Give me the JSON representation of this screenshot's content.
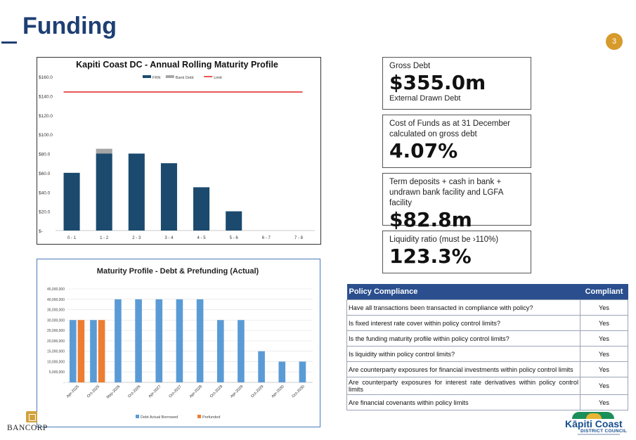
{
  "page": {
    "title": "Funding",
    "number": "3"
  },
  "chart_data": [
    {
      "type": "bar",
      "title": "Kapiti Coast DC - Annual Rolling Maturity Profile",
      "categories": [
        "0 - 1",
        "1 - 2",
        "2 - 3",
        "3 - 4",
        "4 - 5",
        "5 - 6",
        "6 - 7",
        "7 - 8"
      ],
      "series": [
        {
          "name": "FRN",
          "values": [
            60,
            80,
            80,
            70,
            45,
            20,
            0,
            0
          ],
          "color": "#1b4a6e"
        },
        {
          "name": "Bank Debt",
          "values": [
            0,
            5,
            0,
            0,
            0,
            0,
            0,
            0
          ],
          "color": "#a6a6a6"
        }
      ],
      "limit": {
        "name": "Limit",
        "value": 144,
        "color": "#e02020"
      },
      "yticks": [
        "$-",
        "$20.0",
        "$40.0",
        "$60.0",
        "$80.0",
        "$100.0",
        "$120.0",
        "$140.0",
        "$160.0"
      ],
      "ylim": [
        0,
        160
      ],
      "legend": "top"
    },
    {
      "type": "bar",
      "title": "Maturity Profile - Debt & Prefunding (Actual)",
      "categories": [
        "Apr-2025",
        "Oct-2025",
        "May-2026",
        "Oct-2026",
        "Apr-2027",
        "Oct-2027",
        "Apr-2028",
        "Oct-2028",
        "Apr-2029",
        "Oct-2029",
        "Apr-2030",
        "Oct-2030"
      ],
      "series": [
        {
          "name": "Debt Actual Borrowed",
          "values": [
            30000000,
            30000000,
            40000000,
            40000000,
            40000000,
            40000000,
            40000000,
            30000000,
            30000000,
            15000000,
            10000000,
            10000000
          ],
          "color": "#5b9bd5"
        },
        {
          "name": "Prefunded",
          "values": [
            30000000,
            30000000,
            0,
            0,
            0,
            0,
            0,
            0,
            0,
            0,
            0,
            0
          ],
          "color": "#ed7d31"
        }
      ],
      "yticks": [
        "-",
        "5,000,000",
        "10,000,000",
        "15,000,000",
        "20,000,000",
        "25,000,000",
        "30,000,000",
        "35,000,000",
        "40,000,000",
        "45,000,000"
      ],
      "ylim": [
        0,
        45000000
      ],
      "legend": "bottom"
    }
  ],
  "metrics": [
    {
      "label": "Gross Debt",
      "value": "$355.0m",
      "sub": "External Drawn Debt"
    },
    {
      "label": "Cost of Funds as at 31 December calculated on gross debt",
      "value": "4.07%"
    },
    {
      "label": "Term deposits + cash in bank + undrawn bank facility and LGFA facility",
      "value": "$82.8m"
    },
    {
      "label": "Liquidity ratio (must be ›110%)",
      "value": "123.3%"
    }
  ],
  "compliance": {
    "header": {
      "policy": "Policy Compliance",
      "compliant": "Compliant"
    },
    "rows": [
      {
        "q": "Have all transactions been transacted in compliance with policy?",
        "a": "Yes"
      },
      {
        "q": "Is fixed interest rate cover within policy control limits?",
        "a": "Yes"
      },
      {
        "q": "Is the funding maturity profile within policy control limits?",
        "a": "Yes"
      },
      {
        "q": "Is liquidity within policy control limits?",
        "a": "Yes"
      },
      {
        "q": "Are counterparty exposures for financial investments within policy control limits",
        "a": "Yes"
      },
      {
        "q": "Are counterparty exposures for interest rate derivatives within policy control limits",
        "a": "Yes"
      },
      {
        "q": "Are financial covenants within policy limits",
        "a": "Yes"
      }
    ]
  },
  "logos": {
    "left": "BANCORP",
    "right_name": "Kāpiti Coast",
    "right_sub": "DISTRICT COUNCIL"
  },
  "colors": {
    "brand_navy": "#1e3f74",
    "accent_gold": "#d79a2b",
    "table_header": "#2b4f8e"
  }
}
